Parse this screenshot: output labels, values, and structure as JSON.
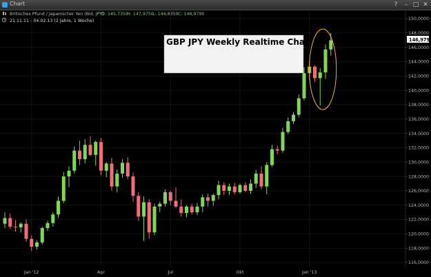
{
  "window": {
    "title": "Chart",
    "controls": {
      "help": "?",
      "minimize": "–",
      "maximize": "□",
      "close": "✕"
    }
  },
  "header": {
    "instrument": "Britisches Pfund / Japanischer Yen (Bid, JPY)",
    "ohlc": {
      "open": "O: 145,7350",
      "high": "H: 147,9750",
      "low": "L: 144,8350",
      "close": "C: 146,9790"
    },
    "range": "21.11.11 - 04.02.13 (2 Jahre, 1 Woche)"
  },
  "colors": {
    "background": "#000000",
    "up_candle": "#7fd65a",
    "down_candle": "#ef6f78",
    "grid": "#1e1e1e",
    "axis_text": "#bbbbbb",
    "highlight_ellipse": "#f2b04a",
    "price_box": "#ffffff"
  },
  "chart_data": {
    "type": "candlestick",
    "title": "GBP JPY Weekly Realtime Chart",
    "ylim": [
      115,
      151
    ],
    "y_ticks": [
      "116,0000",
      "118,0000",
      "120,0000",
      "122,0000",
      "124,0000",
      "126,0000",
      "128,0000",
      "130,0000",
      "132,0000",
      "134,0000",
      "136,0000",
      "138,0000",
      "140,0000",
      "142,0000",
      "144,0000",
      "146,0000",
      "148,0000",
      "150,0000"
    ],
    "x_ticks": [
      {
        "label": "Jan '12",
        "index": 5
      },
      {
        "label": "Apr",
        "index": 18
      },
      {
        "label": "Jul",
        "index": 31
      },
      {
        "label": "Okt",
        "index": 44
      },
      {
        "label": "Jan '13",
        "index": 57
      }
    ],
    "last_price": "146,9790",
    "highlight": {
      "from_index": 58,
      "to_index": 61
    },
    "candles": [
      {
        "o": 121.4,
        "h": 123.0,
        "l": 120.8,
        "c": 122.2
      },
      {
        "o": 122.2,
        "h": 122.8,
        "l": 120.7,
        "c": 121.0
      },
      {
        "o": 121.0,
        "h": 121.9,
        "l": 120.3,
        "c": 120.9
      },
      {
        "o": 120.9,
        "h": 121.6,
        "l": 120.2,
        "c": 121.4
      },
      {
        "o": 121.4,
        "h": 122.0,
        "l": 118.9,
        "c": 119.3
      },
      {
        "o": 119.3,
        "h": 119.8,
        "l": 117.6,
        "c": 118.2
      },
      {
        "o": 118.2,
        "h": 119.1,
        "l": 117.8,
        "c": 118.8
      },
      {
        "o": 118.8,
        "h": 121.0,
        "l": 118.5,
        "c": 120.8
      },
      {
        "o": 120.8,
        "h": 121.8,
        "l": 120.4,
        "c": 121.5
      },
      {
        "o": 121.5,
        "h": 123.0,
        "l": 121.0,
        "c": 122.7
      },
      {
        "o": 122.7,
        "h": 125.2,
        "l": 122.2,
        "c": 124.6
      },
      {
        "o": 124.6,
        "h": 128.6,
        "l": 124.3,
        "c": 128.0
      },
      {
        "o": 128.0,
        "h": 129.4,
        "l": 126.5,
        "c": 128.8
      },
      {
        "o": 128.8,
        "h": 132.2,
        "l": 128.4,
        "c": 131.6
      },
      {
        "o": 131.6,
        "h": 133.0,
        "l": 129.6,
        "c": 130.4
      },
      {
        "o": 130.4,
        "h": 133.2,
        "l": 129.8,
        "c": 132.4
      },
      {
        "o": 132.4,
        "h": 133.6,
        "l": 130.8,
        "c": 131.0
      },
      {
        "o": 131.0,
        "h": 133.0,
        "l": 129.5,
        "c": 132.8
      },
      {
        "o": 132.8,
        "h": 133.4,
        "l": 128.2,
        "c": 128.8
      },
      {
        "o": 128.8,
        "h": 130.0,
        "l": 127.9,
        "c": 129.8
      },
      {
        "o": 129.8,
        "h": 130.6,
        "l": 126.0,
        "c": 126.6
      },
      {
        "o": 126.6,
        "h": 129.0,
        "l": 125.8,
        "c": 128.4
      },
      {
        "o": 128.4,
        "h": 130.4,
        "l": 127.8,
        "c": 129.9
      },
      {
        "o": 129.9,
        "h": 130.7,
        "l": 127.6,
        "c": 128.0
      },
      {
        "o": 128.0,
        "h": 128.5,
        "l": 124.5,
        "c": 125.3
      },
      {
        "o": 125.3,
        "h": 125.8,
        "l": 121.8,
        "c": 122.4
      },
      {
        "o": 122.4,
        "h": 125.2,
        "l": 119.0,
        "c": 124.4
      },
      {
        "o": 124.4,
        "h": 124.8,
        "l": 119.3,
        "c": 120.2
      },
      {
        "o": 120.2,
        "h": 124.2,
        "l": 119.8,
        "c": 123.8
      },
      {
        "o": 123.8,
        "h": 124.5,
        "l": 123.0,
        "c": 124.2
      },
      {
        "o": 124.2,
        "h": 126.2,
        "l": 123.8,
        "c": 125.8
      },
      {
        "o": 125.8,
        "h": 126.0,
        "l": 124.0,
        "c": 124.6
      },
      {
        "o": 124.6,
        "h": 126.5,
        "l": 123.6,
        "c": 123.8
      },
      {
        "o": 123.8,
        "h": 124.8,
        "l": 122.4,
        "c": 122.9
      },
      {
        "o": 122.9,
        "h": 124.0,
        "l": 122.3,
        "c": 123.8
      },
      {
        "o": 123.8,
        "h": 124.2,
        "l": 122.7,
        "c": 123.0
      },
      {
        "o": 123.0,
        "h": 124.3,
        "l": 122.6,
        "c": 123.8
      },
      {
        "o": 123.8,
        "h": 125.5,
        "l": 123.0,
        "c": 125.1
      },
      {
        "o": 125.1,
        "h": 125.6,
        "l": 123.8,
        "c": 124.6
      },
      {
        "o": 124.6,
        "h": 125.6,
        "l": 123.9,
        "c": 125.4
      },
      {
        "o": 125.4,
        "h": 127.4,
        "l": 124.8,
        "c": 126.8
      },
      {
        "o": 126.8,
        "h": 127.2,
        "l": 125.4,
        "c": 126.0
      },
      {
        "o": 126.0,
        "h": 127.0,
        "l": 125.4,
        "c": 126.6
      },
      {
        "o": 126.6,
        "h": 127.1,
        "l": 125.5,
        "c": 125.8
      },
      {
        "o": 125.8,
        "h": 127.0,
        "l": 125.6,
        "c": 126.8
      },
      {
        "o": 126.8,
        "h": 127.2,
        "l": 125.8,
        "c": 126.0
      },
      {
        "o": 126.0,
        "h": 127.6,
        "l": 125.6,
        "c": 127.0
      },
      {
        "o": 127.0,
        "h": 128.9,
        "l": 126.4,
        "c": 128.4
      },
      {
        "o": 128.4,
        "h": 129.4,
        "l": 126.2,
        "c": 126.6
      },
      {
        "o": 126.6,
        "h": 130.0,
        "l": 125.5,
        "c": 129.6
      },
      {
        "o": 129.6,
        "h": 132.4,
        "l": 129.3,
        "c": 131.8
      },
      {
        "o": 131.8,
        "h": 132.3,
        "l": 131.1,
        "c": 131.6
      },
      {
        "o": 131.6,
        "h": 134.8,
        "l": 131.3,
        "c": 134.2
      },
      {
        "o": 134.2,
        "h": 136.2,
        "l": 133.9,
        "c": 135.7
      },
      {
        "o": 135.7,
        "h": 137.0,
        "l": 135.3,
        "c": 136.6
      },
      {
        "o": 136.6,
        "h": 139.4,
        "l": 136.3,
        "c": 138.9
      },
      {
        "o": 138.9,
        "h": 143.2,
        "l": 138.6,
        "c": 142.4
      },
      {
        "o": 142.4,
        "h": 144.1,
        "l": 141.4,
        "c": 143.3
      },
      {
        "o": 143.3,
        "h": 143.5,
        "l": 141.2,
        "c": 141.7
      },
      {
        "o": 141.7,
        "h": 143.1,
        "l": 137.9,
        "c": 142.5
      },
      {
        "o": 142.5,
        "h": 146.4,
        "l": 141.6,
        "c": 145.7
      },
      {
        "o": 145.7,
        "h": 147.975,
        "l": 144.835,
        "c": 146.979
      }
    ]
  }
}
